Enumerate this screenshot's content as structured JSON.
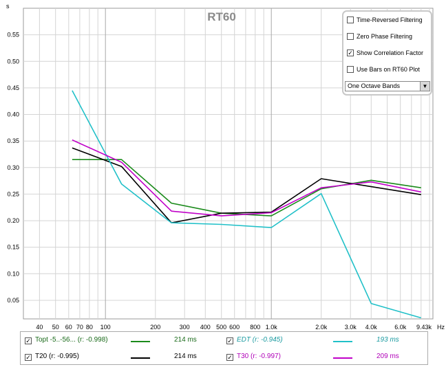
{
  "chart_data": {
    "type": "line",
    "title": "RT60",
    "ylabel": "s",
    "xlabel": "",
    "x_unit": "Hz",
    "x_scale": "log",
    "xlim": [
      32,
      9430
    ],
    "ylim": [
      0.015,
      0.6
    ],
    "grid": true,
    "x_tick_values": [
      40,
      50,
      60,
      70,
      80,
      100,
      200,
      300,
      400,
      500,
      600,
      800,
      1000,
      2000,
      3000,
      4000,
      6000,
      9430
    ],
    "x_tick_labels": [
      "40",
      "50",
      "60",
      "70",
      "80",
      "100",
      "200",
      "300",
      "400",
      "500",
      "600",
      "800",
      "1.0k",
      "2.0k",
      "3.0k",
      "4.0k",
      "6.0k",
      "9.43k"
    ],
    "y_tick_values": [
      0.05,
      0.1,
      0.15,
      0.2,
      0.25,
      0.3,
      0.35,
      0.4,
      0.45,
      0.5,
      0.55
    ],
    "y_tick_labels": [
      "0.05",
      "0.10",
      "0.15",
      "0.20",
      "0.25",
      "0.30",
      "0.35",
      "0.40",
      "0.45",
      "0.50",
      "0.55"
    ],
    "x": [
      63,
      125,
      250,
      500,
      1000,
      2000,
      4000,
      8000
    ],
    "series": [
      {
        "name": "Topt -5..-56... (r: -0.998)",
        "color": "#1a8a1a",
        "values": [
          0.315,
          0.315,
          0.233,
          0.214,
          0.209,
          0.26,
          0.276,
          0.262
        ]
      },
      {
        "name": "T20 (r: -0.995)",
        "color": "#000000",
        "values": [
          0.337,
          0.302,
          0.196,
          0.214,
          0.216,
          0.279,
          0.264,
          0.249
        ]
      },
      {
        "name": "EDT (r: -0.945)",
        "color": "#20c0c8",
        "values": [
          0.445,
          0.269,
          0.196,
          0.193,
          0.187,
          0.251,
          0.044,
          0.017
        ]
      },
      {
        "name": "T30 (r: -0.997)",
        "color": "#c000c8",
        "values": [
          0.352,
          0.31,
          0.218,
          0.209,
          0.215,
          0.262,
          0.273,
          0.254
        ]
      }
    ]
  },
  "options": {
    "time_reversed": {
      "label": "Time-Reversed Filtering",
      "checked": false
    },
    "zero_phase": {
      "label": "Zero Phase Filtering",
      "checked": false
    },
    "show_correlation": {
      "label": "Show Correlation Factor",
      "checked": true
    },
    "use_bars": {
      "label": "Use Bars on RT60 Plot",
      "checked": false
    },
    "band_select": {
      "value": "One Octave Bands"
    }
  },
  "legend": {
    "topt": {
      "label": "Topt -5..-56... (r: -0.998)",
      "value": "214 ms",
      "checked": true
    },
    "t20": {
      "label": "T20 (r: -0.995)",
      "value": "214 ms",
      "checked": true
    },
    "edt": {
      "label": "EDT (r: -0.945)",
      "value": "193 ms",
      "checked": true
    },
    "t30": {
      "label": "T30 (r: -0.997)",
      "value": "209 ms",
      "checked": true
    }
  }
}
